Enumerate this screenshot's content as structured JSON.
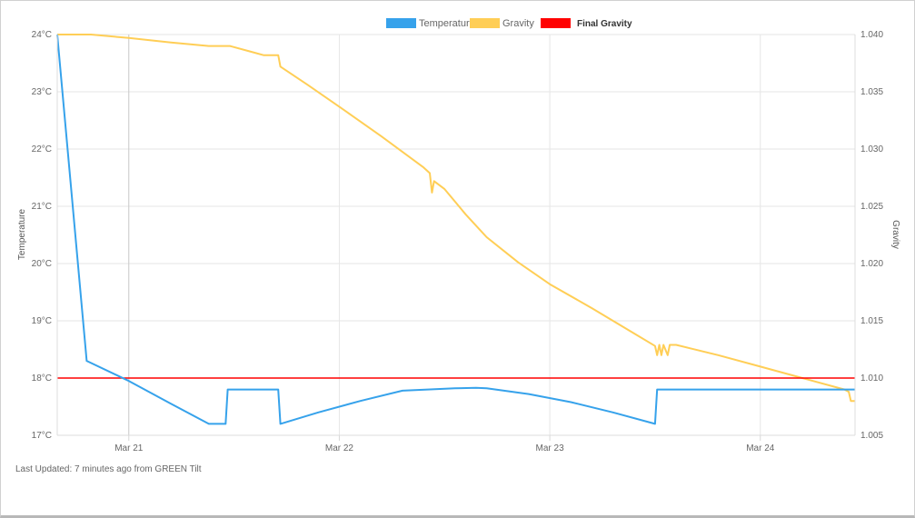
{
  "footer": {
    "text": "Last Updated: 7 minutes ago from GREEN Tilt"
  },
  "chart_data": {
    "type": "line",
    "legend_position": "top-center",
    "grid": true,
    "x_ticks": [
      "Mar 21",
      "Mar 22",
      "Mar 23",
      "Mar 24"
    ],
    "x_range_days": [
      20.66,
      24.45
    ],
    "y_left": {
      "label": "Temperature",
      "ticks": [
        "17°C",
        "18°C",
        "19°C",
        "20°C",
        "21°C",
        "22°C",
        "23°C",
        "24°C"
      ],
      "range": [
        17,
        24
      ]
    },
    "y_right": {
      "label": "Gravity",
      "ticks": [
        "1.005",
        "1.010",
        "1.015",
        "1.020",
        "1.025",
        "1.030",
        "1.035",
        "1.040"
      ],
      "range": [
        1.005,
        1.04
      ]
    },
    "series": [
      {
        "name": "Temperature",
        "axis": "left",
        "color": "#36a2eb",
        "points": [
          [
            20.66,
            24.0
          ],
          [
            20.8,
            18.3
          ],
          [
            21.0,
            17.95
          ],
          [
            21.2,
            17.55
          ],
          [
            21.38,
            17.2
          ],
          [
            21.46,
            17.2
          ],
          [
            21.47,
            17.8
          ],
          [
            21.71,
            17.8
          ],
          [
            21.72,
            17.2
          ],
          [
            21.9,
            17.4
          ],
          [
            22.1,
            17.6
          ],
          [
            22.3,
            17.78
          ],
          [
            22.42,
            17.8
          ],
          [
            22.55,
            17.82
          ],
          [
            22.65,
            17.83
          ],
          [
            22.7,
            17.82
          ],
          [
            22.9,
            17.72
          ],
          [
            23.1,
            17.58
          ],
          [
            23.3,
            17.4
          ],
          [
            23.5,
            17.2
          ],
          [
            23.51,
            17.8
          ],
          [
            24.0,
            17.8
          ],
          [
            24.45,
            17.8
          ]
        ]
      },
      {
        "name": "Gravity",
        "axis": "right",
        "color": "#ffce56",
        "points": [
          [
            20.66,
            1.04
          ],
          [
            20.82,
            1.04
          ],
          [
            21.0,
            1.0397
          ],
          [
            21.2,
            1.0393
          ],
          [
            21.38,
            1.039
          ],
          [
            21.48,
            1.039
          ],
          [
            21.58,
            1.0385
          ],
          [
            21.64,
            1.0382
          ],
          [
            21.71,
            1.0382
          ],
          [
            21.72,
            1.0372
          ],
          [
            21.85,
            1.0356
          ],
          [
            22.0,
            1.0337
          ],
          [
            22.2,
            1.0311
          ],
          [
            22.4,
            1.0284
          ],
          [
            22.43,
            1.0279
          ],
          [
            22.44,
            1.0262
          ],
          [
            22.45,
            1.0272
          ],
          [
            22.5,
            1.0265
          ],
          [
            22.6,
            1.0243
          ],
          [
            22.7,
            1.0223
          ],
          [
            22.85,
            1.0201
          ],
          [
            23.0,
            1.0182
          ],
          [
            23.2,
            1.0161
          ],
          [
            23.4,
            1.0139
          ],
          [
            23.5,
            1.0128
          ],
          [
            23.51,
            1.012
          ],
          [
            23.52,
            1.0129
          ],
          [
            23.53,
            1.012
          ],
          [
            23.54,
            1.0129
          ],
          [
            23.56,
            1.012
          ],
          [
            23.57,
            1.0129
          ],
          [
            23.6,
            1.0129
          ],
          [
            23.8,
            1.012
          ],
          [
            24.0,
            1.011
          ],
          [
            24.2,
            1.01
          ],
          [
            24.4,
            1.009
          ],
          [
            24.42,
            1.0088
          ],
          [
            24.43,
            1.008
          ],
          [
            24.45,
            1.008
          ]
        ]
      },
      {
        "name": "Final Gravity",
        "axis": "right",
        "color": "#ff0000",
        "points": [
          [
            20.66,
            1.01
          ],
          [
            24.45,
            1.01
          ]
        ]
      }
    ]
  }
}
